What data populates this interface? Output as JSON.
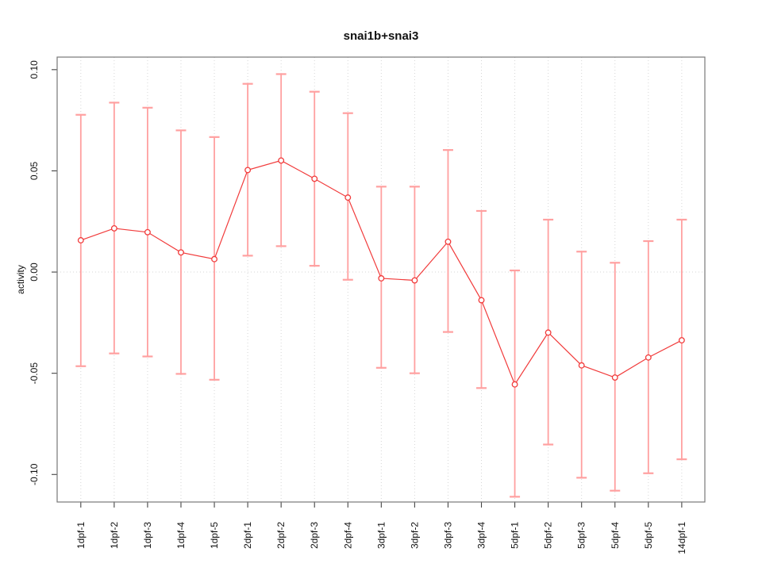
{
  "window": {
    "title": "snai1b+snai3"
  },
  "chart_data": {
    "type": "line",
    "title": "snai1b+snai3",
    "xlabel": "",
    "ylabel": "activity",
    "categories": [
      "1dpf-1",
      "1dpf-2",
      "1dpf-3",
      "1dpf-4",
      "1dpf-5",
      "2dpf-1",
      "2dpf-2",
      "2dpf-3",
      "2dpf-4",
      "3dpf-1",
      "3dpf-2",
      "3dpf-3",
      "3dpf-4",
      "5dpf-1",
      "5dpf-2",
      "5dpf-3",
      "5dpf-4",
      "5dpf-5",
      "14dpf-1"
    ],
    "series": [
      {
        "name": "activity",
        "values": [
          0.0157,
          0.0216,
          0.0197,
          0.0097,
          0.0064,
          0.0504,
          0.0551,
          0.0461,
          0.0368,
          -0.0031,
          -0.0041,
          0.015,
          -0.0139,
          -0.0555,
          -0.0299,
          -0.0461,
          -0.0521,
          -0.0422,
          -0.0337
        ],
        "error_upper": [
          0.0777,
          0.0837,
          0.0812,
          0.07,
          0.0667,
          0.093,
          0.0978,
          0.0891,
          0.0785,
          0.0422,
          0.0422,
          0.0603,
          0.0302,
          0.0008,
          0.0259,
          0.0101,
          0.0046,
          0.0153,
          0.0259
        ],
        "error_lower": [
          -0.0465,
          -0.0402,
          -0.0417,
          -0.0503,
          -0.0532,
          0.0081,
          0.0128,
          0.0031,
          -0.0038,
          -0.0473,
          -0.05,
          -0.0296,
          -0.0573,
          -0.111,
          -0.0852,
          -0.1016,
          -0.108,
          -0.0994,
          -0.0925
        ]
      }
    ],
    "y_ticks": [
      {
        "label": "0.10",
        "value": 0.1
      },
      {
        "label": "0.05",
        "value": 0.05
      },
      {
        "label": "0.00",
        "value": 0.0
      },
      {
        "label": "-0.05",
        "value": -0.05
      },
      {
        "label": "-0.10",
        "value": -0.1
      }
    ],
    "ylim": [
      -0.1136,
      0.1062
    ],
    "grid": {
      "vertical_dotted_per_category": true,
      "horizontal_dotted_zero_line": true
    },
    "legend": "none",
    "marker": "open-circle",
    "colors": {
      "line": "#f13b3b",
      "point": "#f13b3b",
      "error_bar": "#ffa0a0",
      "grid": "#d6d6d6",
      "box": "#777777",
      "tick": "#444444",
      "text": "#111111"
    }
  }
}
